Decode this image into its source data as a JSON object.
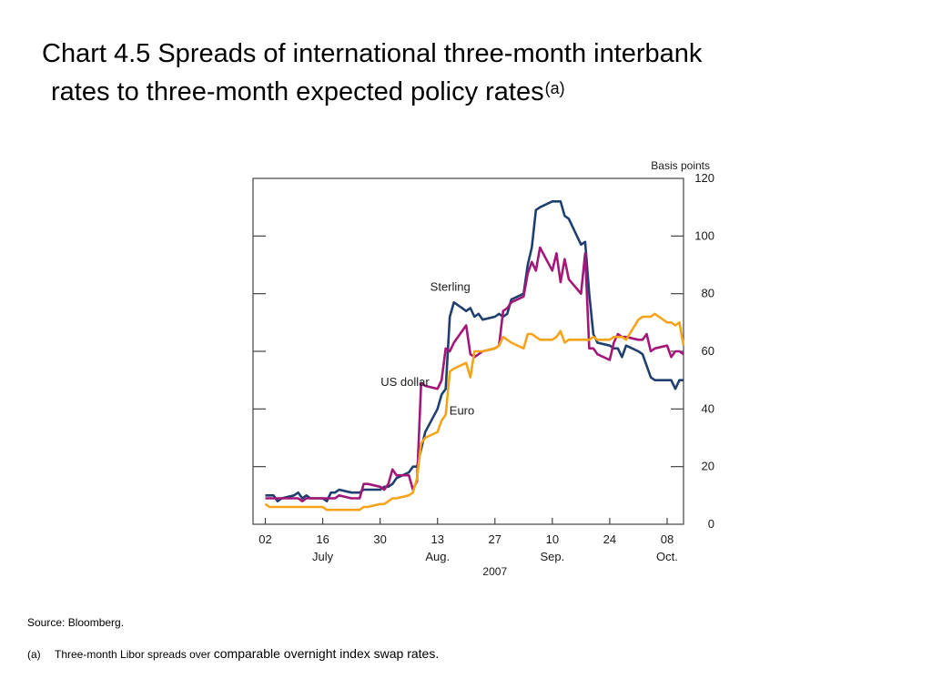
{
  "header": {
    "title_line1": "Chart 4.5  Spreads of international three-month interbank",
    "title_line2": "rates to three-month expected policy rates",
    "title_superscript": "(a)"
  },
  "chart_data": {
    "type": "line",
    "title": "",
    "ylabel": "Basis points",
    "ylim": [
      0,
      120
    ],
    "yticks": [
      0,
      20,
      40,
      60,
      80,
      100,
      120
    ],
    "y_axis_side": "right",
    "grid": false,
    "x_range": [
      "2007-06-29",
      "2007-10-12"
    ],
    "xtick_labels": [
      {
        "date": "2007-07-02",
        "label": "02"
      },
      {
        "date": "2007-07-16",
        "label": "16"
      },
      {
        "date": "2007-07-30",
        "label": "30"
      },
      {
        "date": "2007-08-13",
        "label": "13"
      },
      {
        "date": "2007-08-27",
        "label": "27"
      },
      {
        "date": "2007-09-10",
        "label": "10"
      },
      {
        "date": "2007-09-24",
        "label": "24"
      },
      {
        "date": "2007-10-08",
        "label": "08"
      }
    ],
    "month_labels": [
      {
        "date": "2007-07-16",
        "label": "July"
      },
      {
        "date": "2007-08-13",
        "label": "Aug."
      },
      {
        "date": "2007-09-10",
        "label": "Sep."
      },
      {
        "date": "2007-10-08",
        "label": "Oct."
      }
    ],
    "year_label": {
      "date": "2007-08-27",
      "label": "2007"
    },
    "series": [
      {
        "name": "Sterling",
        "color": "#1f3f6e",
        "label_anchor": {
          "date": "2007-08-21",
          "value": 81
        },
        "points": [
          [
            "2007-07-02",
            10
          ],
          [
            "2007-07-03",
            10
          ],
          [
            "2007-07-04",
            10
          ],
          [
            "2007-07-05",
            8
          ],
          [
            "2007-07-06",
            9
          ],
          [
            "2007-07-09",
            10
          ],
          [
            "2007-07-10",
            11
          ],
          [
            "2007-07-11",
            9
          ],
          [
            "2007-07-12",
            10
          ],
          [
            "2007-07-13",
            9
          ],
          [
            "2007-07-16",
            9
          ],
          [
            "2007-07-17",
            8
          ],
          [
            "2007-07-18",
            11
          ],
          [
            "2007-07-19",
            11
          ],
          [
            "2007-07-20",
            12
          ],
          [
            "2007-07-23",
            11
          ],
          [
            "2007-07-24",
            11
          ],
          [
            "2007-07-25",
            11
          ],
          [
            "2007-07-26",
            12
          ],
          [
            "2007-07-27",
            12
          ],
          [
            "2007-07-30",
            12
          ],
          [
            "2007-07-31",
            13
          ],
          [
            "2007-08-01",
            13
          ],
          [
            "2007-08-02",
            14
          ],
          [
            "2007-08-03",
            16
          ],
          [
            "2007-08-06",
            18
          ],
          [
            "2007-08-07",
            20
          ],
          [
            "2007-08-08",
            20
          ],
          [
            "2007-08-09",
            26
          ],
          [
            "2007-08-10",
            32
          ],
          [
            "2007-08-13",
            40
          ],
          [
            "2007-08-14",
            45
          ],
          [
            "2007-08-15",
            47
          ],
          [
            "2007-08-16",
            72
          ],
          [
            "2007-08-17",
            77
          ],
          [
            "2007-08-20",
            74
          ],
          [
            "2007-08-21",
            75
          ],
          [
            "2007-08-22",
            72
          ],
          [
            "2007-08-23",
            73
          ],
          [
            "2007-08-24",
            71
          ],
          [
            "2007-08-27",
            72
          ],
          [
            "2007-08-28",
            73
          ],
          [
            "2007-08-29",
            72
          ],
          [
            "2007-08-30",
            73
          ],
          [
            "2007-08-31",
            78
          ],
          [
            "2007-09-03",
            80
          ],
          [
            "2007-09-04",
            90
          ],
          [
            "2007-09-05",
            96
          ],
          [
            "2007-09-06",
            109
          ],
          [
            "2007-09-07",
            110
          ],
          [
            "2007-09-10",
            112
          ],
          [
            "2007-09-11",
            112
          ],
          [
            "2007-09-12",
            112
          ],
          [
            "2007-09-13",
            107
          ],
          [
            "2007-09-14",
            106
          ],
          [
            "2007-09-17",
            97
          ],
          [
            "2007-09-18",
            98
          ],
          [
            "2007-09-19",
            80
          ],
          [
            "2007-09-20",
            66
          ],
          [
            "2007-09-21",
            63
          ],
          [
            "2007-09-24",
            62
          ],
          [
            "2007-09-25",
            61
          ],
          [
            "2007-09-26",
            61
          ],
          [
            "2007-09-27",
            58
          ],
          [
            "2007-09-28",
            62
          ],
          [
            "2007-10-01",
            60
          ],
          [
            "2007-10-02",
            59
          ],
          [
            "2007-10-03",
            55
          ],
          [
            "2007-10-04",
            51
          ],
          [
            "2007-10-05",
            50
          ],
          [
            "2007-10-08",
            50
          ],
          [
            "2007-10-09",
            50
          ],
          [
            "2007-10-10",
            47
          ],
          [
            "2007-10-11",
            50
          ],
          [
            "2007-10-12",
            50
          ]
        ]
      },
      {
        "name": "US dollar",
        "color": "#a3167a",
        "label_anchor": {
          "date": "2007-08-11",
          "value": 48
        },
        "points": [
          [
            "2007-07-02",
            9
          ],
          [
            "2007-07-03",
            9
          ],
          [
            "2007-07-04",
            9
          ],
          [
            "2007-07-05",
            9
          ],
          [
            "2007-07-06",
            9
          ],
          [
            "2007-07-09",
            9
          ],
          [
            "2007-07-10",
            9
          ],
          [
            "2007-07-11",
            8
          ],
          [
            "2007-07-12",
            9
          ],
          [
            "2007-07-13",
            9
          ],
          [
            "2007-07-16",
            9
          ],
          [
            "2007-07-17",
            9
          ],
          [
            "2007-07-18",
            9
          ],
          [
            "2007-07-19",
            9
          ],
          [
            "2007-07-20",
            10
          ],
          [
            "2007-07-23",
            9
          ],
          [
            "2007-07-24",
            9
          ],
          [
            "2007-07-25",
            9
          ],
          [
            "2007-07-26",
            14
          ],
          [
            "2007-07-27",
            14
          ],
          [
            "2007-07-30",
            13
          ],
          [
            "2007-07-31",
            12
          ],
          [
            "2007-08-01",
            14
          ],
          [
            "2007-08-02",
            19
          ],
          [
            "2007-08-03",
            17
          ],
          [
            "2007-08-06",
            17
          ],
          [
            "2007-08-07",
            12
          ],
          [
            "2007-08-08",
            15
          ],
          [
            "2007-08-09",
            49
          ],
          [
            "2007-08-10",
            48
          ],
          [
            "2007-08-13",
            47
          ],
          [
            "2007-08-14",
            50
          ],
          [
            "2007-08-15",
            61
          ],
          [
            "2007-08-16",
            60
          ],
          [
            "2007-08-17",
            63
          ],
          [
            "2007-08-20",
            69
          ],
          [
            "2007-08-21",
            59
          ],
          [
            "2007-08-22",
            58
          ],
          [
            "2007-08-23",
            59
          ],
          [
            "2007-08-24",
            60
          ],
          [
            "2007-08-27",
            61
          ],
          [
            "2007-08-28",
            62
          ],
          [
            "2007-08-29",
            74
          ],
          [
            "2007-08-30",
            75
          ],
          [
            "2007-08-31",
            77
          ],
          [
            "2007-09-03",
            79
          ],
          [
            "2007-09-04",
            87
          ],
          [
            "2007-09-05",
            91
          ],
          [
            "2007-09-06",
            88
          ],
          [
            "2007-09-07",
            96
          ],
          [
            "2007-09-10",
            88
          ],
          [
            "2007-09-11",
            94
          ],
          [
            "2007-09-12",
            84
          ],
          [
            "2007-09-13",
            92
          ],
          [
            "2007-09-14",
            85
          ],
          [
            "2007-09-17",
            80
          ],
          [
            "2007-09-18",
            94
          ],
          [
            "2007-09-19",
            61
          ],
          [
            "2007-09-20",
            61
          ],
          [
            "2007-09-21",
            59
          ],
          [
            "2007-09-24",
            57
          ],
          [
            "2007-09-25",
            63
          ],
          [
            "2007-09-26",
            66
          ],
          [
            "2007-09-27",
            65
          ],
          [
            "2007-09-28",
            65
          ],
          [
            "2007-10-01",
            64
          ],
          [
            "2007-10-02",
            64
          ],
          [
            "2007-10-03",
            66
          ],
          [
            "2007-10-04",
            60
          ],
          [
            "2007-10-05",
            61
          ],
          [
            "2007-10-08",
            62
          ],
          [
            "2007-10-09",
            58
          ],
          [
            "2007-10-10",
            60
          ],
          [
            "2007-10-11",
            60
          ],
          [
            "2007-10-12",
            59
          ]
        ]
      },
      {
        "name": "Euro",
        "color": "#f5a41a",
        "label_anchor": {
          "date": "2007-08-22",
          "value": 38
        },
        "points": [
          [
            "2007-07-02",
            7
          ],
          [
            "2007-07-03",
            6
          ],
          [
            "2007-07-04",
            6
          ],
          [
            "2007-07-05",
            6
          ],
          [
            "2007-07-06",
            6
          ],
          [
            "2007-07-09",
            6
          ],
          [
            "2007-07-10",
            6
          ],
          [
            "2007-07-11",
            6
          ],
          [
            "2007-07-12",
            6
          ],
          [
            "2007-07-13",
            6
          ],
          [
            "2007-07-16",
            6
          ],
          [
            "2007-07-17",
            5
          ],
          [
            "2007-07-18",
            5
          ],
          [
            "2007-07-19",
            5
          ],
          [
            "2007-07-20",
            5
          ],
          [
            "2007-07-23",
            5
          ],
          [
            "2007-07-24",
            5
          ],
          [
            "2007-07-25",
            5
          ],
          [
            "2007-07-26",
            6
          ],
          [
            "2007-07-27",
            6
          ],
          [
            "2007-07-30",
            7
          ],
          [
            "2007-07-31",
            7
          ],
          [
            "2007-08-01",
            8
          ],
          [
            "2007-08-02",
            9
          ],
          [
            "2007-08-03",
            9
          ],
          [
            "2007-08-06",
            10
          ],
          [
            "2007-08-07",
            11
          ],
          [
            "2007-08-08",
            16
          ],
          [
            "2007-08-09",
            28
          ],
          [
            "2007-08-10",
            30
          ],
          [
            "2007-08-13",
            32
          ],
          [
            "2007-08-14",
            36
          ],
          [
            "2007-08-15",
            38
          ],
          [
            "2007-08-16",
            53
          ],
          [
            "2007-08-17",
            54
          ],
          [
            "2007-08-20",
            56
          ],
          [
            "2007-08-21",
            51
          ],
          [
            "2007-08-22",
            60
          ],
          [
            "2007-08-23",
            60
          ],
          [
            "2007-08-24",
            60
          ],
          [
            "2007-08-27",
            61
          ],
          [
            "2007-08-28",
            62
          ],
          [
            "2007-08-29",
            65
          ],
          [
            "2007-08-30",
            64
          ],
          [
            "2007-08-31",
            63
          ],
          [
            "2007-09-03",
            61
          ],
          [
            "2007-09-04",
            66
          ],
          [
            "2007-09-05",
            66
          ],
          [
            "2007-09-06",
            65
          ],
          [
            "2007-09-07",
            64
          ],
          [
            "2007-09-10",
            64
          ],
          [
            "2007-09-11",
            65
          ],
          [
            "2007-09-12",
            67
          ],
          [
            "2007-09-13",
            63
          ],
          [
            "2007-09-14",
            64
          ],
          [
            "2007-09-17",
            64
          ],
          [
            "2007-09-18",
            64
          ],
          [
            "2007-09-19",
            64
          ],
          [
            "2007-09-20",
            65
          ],
          [
            "2007-09-21",
            64
          ],
          [
            "2007-09-24",
            64
          ],
          [
            "2007-09-25",
            65
          ],
          [
            "2007-09-26",
            65
          ],
          [
            "2007-09-27",
            65
          ],
          [
            "2007-09-28",
            64
          ],
          [
            "2007-10-01",
            71
          ],
          [
            "2007-10-02",
            72
          ],
          [
            "2007-10-03",
            72
          ],
          [
            "2007-10-04",
            72
          ],
          [
            "2007-10-05",
            73
          ],
          [
            "2007-10-08",
            70
          ],
          [
            "2007-10-09",
            70
          ],
          [
            "2007-10-10",
            69
          ],
          [
            "2007-10-11",
            70
          ],
          [
            "2007-10-12",
            62
          ]
        ]
      }
    ]
  },
  "footer": {
    "source": "Source:  Bloomberg.",
    "footnote_marker": "(a)",
    "footnote_text_small": "Three-month Libor spreads over ",
    "footnote_text_large": "comparable overnight index swap rates."
  }
}
